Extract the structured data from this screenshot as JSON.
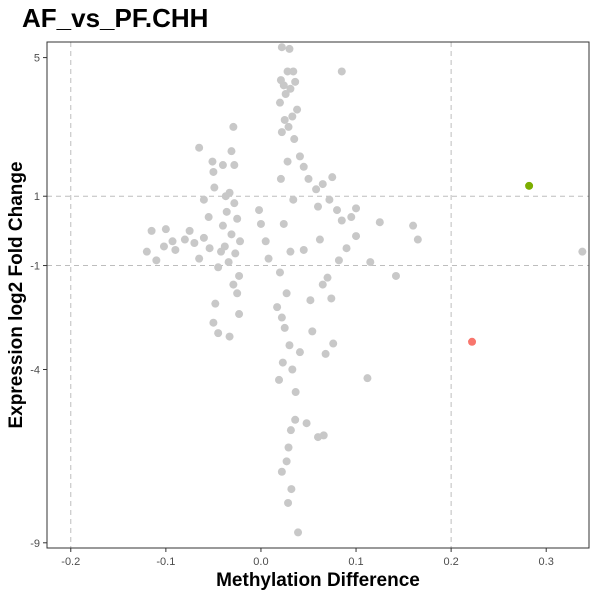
{
  "chart_data": {
    "type": "scatter",
    "title": "AF_vs_PF.CHH",
    "xlabel": "Methylation Difference",
    "ylabel": "Expression log2 Fold Change",
    "xlim": [
      -0.225,
      0.345
    ],
    "ylim": [
      -9.15,
      5.45
    ],
    "x_ticks": [
      -0.2,
      -0.1,
      0.0,
      0.1,
      0.2,
      0.3
    ],
    "x_tick_labels": [
      "-0.2",
      "-0.1",
      "0.0",
      "0.1",
      "0.2",
      "0.3"
    ],
    "y_ticks": [
      -9,
      -4,
      -1,
      1,
      5
    ],
    "y_tick_labels": [
      "-9",
      "-4",
      "-1",
      "1",
      "5"
    ],
    "x_thresholds": [
      -0.2,
      0.2
    ],
    "y_thresholds": [
      -1,
      1
    ],
    "grid": false,
    "legend": "none",
    "colors": {
      "neutral": "#c8c8c8",
      "up": "#7cae00",
      "down": "#f8766d",
      "threshold_line": "#bdbdbd"
    },
    "series": [
      {
        "color": "#c8c8c8",
        "points": [
          [
            0.022,
            5.3
          ],
          [
            0.03,
            5.25
          ],
          [
            0.028,
            4.6
          ],
          [
            0.034,
            4.6
          ],
          [
            0.021,
            4.35
          ],
          [
            0.036,
            4.3
          ],
          [
            0.024,
            4.2
          ],
          [
            0.031,
            4.1
          ],
          [
            0.026,
            3.95
          ],
          [
            0.02,
            3.7
          ],
          [
            0.038,
            3.5
          ],
          [
            0.085,
            4.6
          ],
          [
            -0.029,
            3.0
          ],
          [
            -0.065,
            2.4
          ],
          [
            0.033,
            3.3
          ],
          [
            0.025,
            3.2
          ],
          [
            0.029,
            3.0
          ],
          [
            0.022,
            2.85
          ],
          [
            0.035,
            2.65
          ],
          [
            0.041,
            2.15
          ],
          [
            0.045,
            1.85
          ],
          [
            0.05,
            1.5
          ],
          [
            0.065,
            1.35
          ],
          [
            0.075,
            1.55
          ],
          [
            0.058,
            1.2
          ],
          [
            0.072,
            0.9
          ],
          [
            0.06,
            0.7
          ],
          [
            0.08,
            0.6
          ],
          [
            0.095,
            0.4
          ],
          [
            0.1,
            0.65
          ],
          [
            0.125,
            0.25
          ],
          [
            0.16,
            0.15
          ],
          [
            0.1,
            -0.15
          ],
          [
            0.062,
            -0.25
          ],
          [
            0.045,
            -0.55
          ],
          [
            0.082,
            -0.85
          ],
          [
            0.07,
            -1.35
          ],
          [
            0.065,
            -1.55
          ],
          [
            0.052,
            -2.0
          ],
          [
            0.074,
            -1.95
          ],
          [
            0.076,
            -3.25
          ],
          [
            0.068,
            -3.55
          ],
          [
            0.054,
            -2.9
          ],
          [
            0.112,
            -4.25
          ],
          [
            0.0365,
            -4.65
          ],
          [
            0.036,
            -5.45
          ],
          [
            0.048,
            -5.55
          ],
          [
            0.06,
            -5.95
          ],
          [
            0.066,
            -5.9
          ],
          [
            0.0315,
            -5.75
          ],
          [
            0.029,
            -6.25
          ],
          [
            0.027,
            -6.65
          ],
          [
            0.022,
            -6.95
          ],
          [
            0.032,
            -7.45
          ],
          [
            0.0285,
            -7.85
          ],
          [
            0.039,
            -8.7
          ],
          [
            0.022,
            -2.5
          ],
          [
            0.027,
            -1.8
          ],
          [
            0.02,
            -1.2
          ],
          [
            0.031,
            -0.6
          ],
          [
            0.024,
            0.2
          ],
          [
            0.034,
            0.9
          ],
          [
            0.021,
            1.5
          ],
          [
            0.028,
            2.0
          ],
          [
            0.025,
            -2.8
          ],
          [
            0.03,
            -3.3
          ],
          [
            0.023,
            -3.8
          ],
          [
            0.019,
            -4.3
          ],
          [
            0.033,
            -4.0
          ],
          [
            0.041,
            -3.5
          ],
          [
            0.017,
            -2.2
          ],
          [
            -0.033,
            1.1
          ],
          [
            -0.028,
            0.8
          ],
          [
            -0.036,
            0.55
          ],
          [
            -0.025,
            0.35
          ],
          [
            -0.04,
            0.15
          ],
          [
            -0.031,
            -0.1
          ],
          [
            -0.022,
            -0.3
          ],
          [
            -0.038,
            -0.45
          ],
          [
            -0.027,
            -0.65
          ],
          [
            -0.034,
            -0.9
          ],
          [
            -0.045,
            -1.05
          ],
          [
            -0.055,
            0.4
          ],
          [
            -0.06,
            -0.2
          ],
          [
            -0.023,
            -1.3
          ],
          [
            -0.029,
            -1.55
          ],
          [
            -0.025,
            -1.8
          ],
          [
            -0.023,
            -2.4
          ],
          [
            -0.033,
            -3.05
          ],
          [
            -0.045,
            -2.95
          ],
          [
            -0.048,
            -2.1
          ],
          [
            -0.05,
            -2.65
          ],
          [
            -0.051,
            2.0
          ],
          [
            -0.05,
            1.7
          ],
          [
            -0.04,
            1.9
          ],
          [
            -0.028,
            1.9
          ],
          [
            -0.031,
            2.3
          ],
          [
            -0.037,
            1.0
          ],
          [
            -0.042,
            -0.6
          ],
          [
            -0.049,
            1.25
          ],
          [
            -0.065,
            -0.8
          ],
          [
            -0.07,
            -0.35
          ],
          [
            -0.09,
            -0.55
          ],
          [
            -0.1,
            0.05
          ],
          [
            -0.11,
            -0.85
          ],
          [
            -0.115,
            0.0
          ],
          [
            -0.093,
            -0.3
          ],
          [
            -0.075,
            0.0
          ],
          [
            -0.08,
            -0.25
          ],
          [
            -0.12,
            -0.6
          ],
          [
            -0.102,
            -0.45
          ],
          [
            -0.06,
            0.9
          ],
          [
            -0.054,
            -0.5
          ],
          [
            0.0,
            0.2
          ],
          [
            0.005,
            -0.3
          ],
          [
            -0.002,
            0.6
          ],
          [
            0.008,
            -0.8
          ],
          [
            0.165,
            -0.25
          ],
          [
            0.142,
            -1.3
          ],
          [
            0.09,
            -0.5
          ],
          [
            0.085,
            0.3
          ],
          [
            0.115,
            -0.9
          ]
        ]
      },
      {
        "color": "#7cae00",
        "points": [
          [
            0.282,
            1.3
          ]
        ]
      },
      {
        "color": "#f8766d",
        "points": [
          [
            0.222,
            -3.2
          ]
        ]
      },
      {
        "color": "#c8c8c8",
        "points": [
          [
            0.338,
            -0.6
          ]
        ]
      }
    ]
  }
}
